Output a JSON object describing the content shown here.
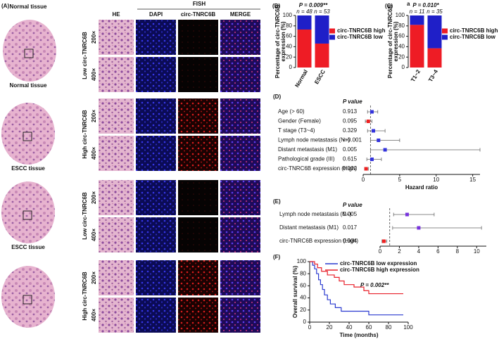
{
  "panel_a": {
    "label": "(A)",
    "header_fish": "FISH",
    "columns": [
      "HE",
      "DAPI",
      "circ-TNRC6B",
      "MERGE"
    ],
    "groups": [
      {
        "tissue": "Normal tissue",
        "expression": "Low circ-TNRC6B"
      },
      {
        "tissue": "Normal tissue",
        "expression": "High circ-TNRC6B"
      },
      {
        "tissue": "ESCC tissue",
        "expression": "Low circ-TNRC6B"
      },
      {
        "tissue": "ESCC tissue",
        "expression": "High circ-TNRC6B"
      }
    ],
    "magnifications": [
      "200×",
      "400×"
    ]
  },
  "chart_data": [
    {
      "type": "stacked_bar",
      "label": "(B)",
      "title": "P = 0.009**",
      "y_label": [
        "Percentage of circ-TNRC6B",
        "expression (%)"
      ],
      "categories": [
        "Normal",
        "ESCC"
      ],
      "n_labels": [
        "n = 48",
        "n = 53"
      ],
      "series": [
        {
          "name": "circ-TNRC6B high",
          "color": "#ee1c25",
          "values": [
            73,
            46
          ]
        },
        {
          "name": "circ-TNRC6B low",
          "color": "#1f1fc8",
          "values": [
            27,
            54
          ]
        }
      ],
      "ylim": [
        0,
        100
      ],
      "yticks": [
        0,
        20,
        40,
        60,
        80,
        100
      ]
    },
    {
      "type": "stacked_bar",
      "label": "(C)",
      "title_note": "a",
      "title": "P = 0.010*",
      "y_label": [
        "Percentage of circ-TNRC6B",
        "expression (%)"
      ],
      "categories": [
        "T1~2",
        "T3~4"
      ],
      "n_labels": [
        "n = 11",
        "n = 35"
      ],
      "series": [
        {
          "name": "circ-TNRC6B high",
          "color": "#ee1c25",
          "values": [
            82,
            37
          ]
        },
        {
          "name": "circ-TNRC6B low",
          "color": "#1f1fc8",
          "values": [
            18,
            63
          ]
        }
      ],
      "ylim": [
        0,
        100
      ],
      "yticks": [
        0,
        20,
        40,
        60,
        80,
        100
      ]
    },
    {
      "type": "forest",
      "label": "(D)",
      "p_header": "P value",
      "x_label": "Hazard ratio",
      "categories": [
        "Age (> 60)",
        "Gender (Female)",
        "T stage (T3~4)",
        "Lymph node metastasis (N+)",
        "Distant metastasis (M1)",
        "Pathological grade (III)",
        "circ-TNRC6B expression (High)"
      ],
      "p_values": [
        "0.913",
        "0.095",
        "0.329",
        "< 0.001",
        "0.005",
        "0.615",
        "0.002"
      ],
      "values": [
        1.2,
        0.7,
        1.4,
        2.1,
        3.0,
        1.2,
        0.4
      ],
      "lower": [
        0.6,
        0.3,
        0.6,
        1.0,
        1.0,
        0.5,
        0.2
      ],
      "upper": [
        2.0,
        1.2,
        3.0,
        5.0,
        16,
        2.5,
        0.7
      ],
      "point_colors": [
        "#3333dd",
        "#ee2222",
        "#3333dd",
        "#3333dd",
        "#3333dd",
        "#3333dd",
        "#ee2222"
      ],
      "ref_line": 1,
      "xlim": [
        0,
        16
      ],
      "xticks": [
        0,
        5,
        10,
        15
      ]
    },
    {
      "type": "forest",
      "label": "(E)",
      "p_header": "P value",
      "categories": [
        "Lymph node metastasis (N+)",
        "Distant metastasis (M1)",
        "circ-TNRC6B expression (High)"
      ],
      "p_values": [
        "0.005",
        "0.017",
        "0.004"
      ],
      "values": [
        2.8,
        4.0,
        0.4
      ],
      "lower": [
        1.4,
        1.3,
        0.2
      ],
      "upper": [
        5.6,
        10.5,
        0.7
      ],
      "point_colors": [
        "#7733dd",
        "#7733dd",
        "#ee2222"
      ],
      "ref_line": 1,
      "xlim": [
        0,
        11
      ],
      "xticks": [
        0,
        2,
        4,
        6,
        8,
        10
      ]
    },
    {
      "type": "km",
      "label": "(F)",
      "title": "P = 0.002**",
      "x_label": "Time (months)",
      "y_label": "Overall survival (%)",
      "series": [
        {
          "name": "circ-TNRC6B low expression",
          "color": "#2b3bd0",
          "x": [
            0,
            3,
            3,
            5,
            5,
            7,
            7,
            9,
            9,
            11,
            11,
            13,
            13,
            15,
            15,
            18,
            18,
            21,
            21,
            26,
            26,
            32,
            32,
            60,
            60,
            95
          ],
          "values": [
            100,
            100,
            94,
            94,
            88,
            88,
            80,
            80,
            70,
            70,
            62,
            62,
            54,
            54,
            45,
            45,
            37,
            37,
            30,
            30,
            24,
            24,
            18,
            18,
            12,
            12
          ]
        },
        {
          "name": "circ-TNRC6B high expression",
          "color": "#e8202a",
          "x": [
            0,
            5,
            5,
            8,
            8,
            12,
            12,
            18,
            18,
            25,
            25,
            30,
            30,
            35,
            35,
            45,
            45,
            55,
            55,
            60,
            60,
            95
          ],
          "values": [
            100,
            100,
            96,
            96,
            90,
            90,
            84,
            84,
            78,
            78,
            74,
            74,
            68,
            68,
            62,
            62,
            58,
            58,
            52,
            52,
            47,
            47
          ]
        }
      ],
      "xlim": [
        0,
        100
      ],
      "xticks": [
        0,
        20,
        40,
        60,
        80,
        100
      ],
      "ylim": [
        0,
        100
      ],
      "yticks": [
        0,
        20,
        40,
        60,
        80,
        100
      ]
    }
  ]
}
